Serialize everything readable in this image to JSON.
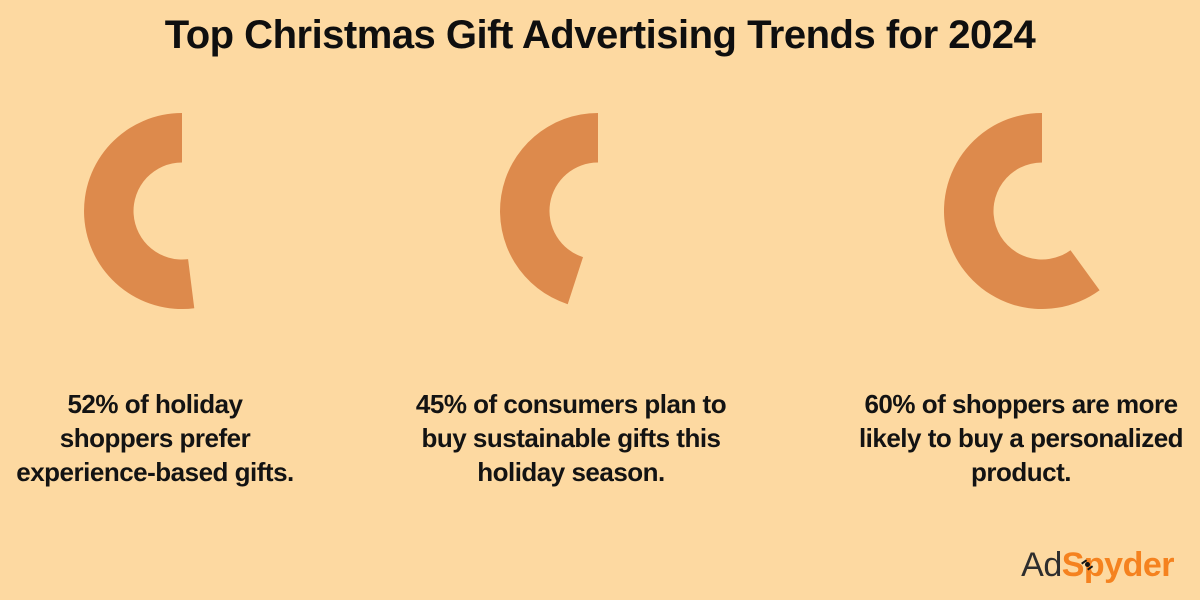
{
  "page": {
    "title": "Top Christmas Gift Advertising Trends for 2024",
    "background_color": "#FDD9A1",
    "text_color": "#131313"
  },
  "colors": {
    "arc": "#DD8A4C",
    "logo_prefix": "#2E2E2E",
    "logo_suffix": "#F5821F"
  },
  "stats": [
    {
      "percent": 52,
      "caption": "52% of holiday shoppers prefer experience-based gifts.",
      "lines": [
        "52% of holiday",
        "shoppers prefer",
        "experience-based gifts."
      ]
    },
    {
      "percent": 45,
      "caption": "45% of consumers plan to buy sustainable gifts this holiday season.",
      "lines": [
        "45% of consumers plan to",
        "buy sustainable gifts this",
        "holiday season."
      ]
    },
    {
      "percent": 60,
      "caption": "60% of shoppers are more likely to buy a personalized product.",
      "lines": [
        "60% of shoppers are more",
        "likely to buy a personalized",
        "product."
      ]
    }
  ],
  "logo": {
    "prefix": "Ad",
    "suffix": "Spyder"
  },
  "chart_data": [
    {
      "type": "pie",
      "subtype": "donut",
      "title": "52% of holiday shoppers prefer experience-based gifts.",
      "labels": [
        "Holiday shoppers preferring experience-based gifts",
        "Remainder"
      ],
      "values": [
        52,
        48
      ],
      "colors": [
        "#DD8A4C",
        "#FDD9A1"
      ],
      "start_angle_deg": 0,
      "direction": "counterclockwise",
      "inner_radius_ratio": 0.49
    },
    {
      "type": "pie",
      "subtype": "donut",
      "title": "45% of consumers plan to buy sustainable gifts this holiday season.",
      "labels": [
        "Consumers planning to buy sustainable gifts",
        "Remainder"
      ],
      "values": [
        45,
        55
      ],
      "colors": [
        "#DD8A4C",
        "#FDD9A1"
      ],
      "start_angle_deg": 0,
      "direction": "counterclockwise",
      "inner_radius_ratio": 0.49
    },
    {
      "type": "pie",
      "subtype": "donut",
      "title": "60% of shoppers are more likely to buy a personalized product.",
      "labels": [
        "Shoppers more likely to buy a personalized product",
        "Remainder"
      ],
      "values": [
        60,
        40
      ],
      "colors": [
        "#DD8A4C",
        "#FDD9A1"
      ],
      "start_angle_deg": 0,
      "direction": "counterclockwise",
      "inner_radius_ratio": 0.49
    }
  ]
}
